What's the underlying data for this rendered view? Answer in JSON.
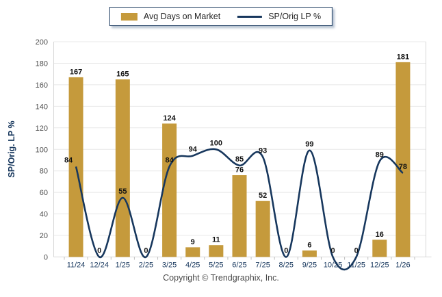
{
  "legend": {
    "items": [
      {
        "label": "Avg Days on Market",
        "swatch": "bar-swatch",
        "color": "#C59A3C"
      },
      {
        "label": "SP/Orig LP %",
        "swatch": "line-swatch",
        "color": "#17375D"
      }
    ]
  },
  "y_axis": {
    "title": "SP/Orig. LP %",
    "min": 0,
    "max": 200,
    "step": 20
  },
  "footer": {
    "copyright": "Copyright © Trendgraphix, Inc."
  },
  "colors": {
    "bar_fill": "#C59A3C",
    "line_stroke": "#17375D",
    "gridline": "#E8E8E8",
    "axis_line": "#D6D6D6",
    "tick_mark": "#BDBDBD",
    "y_tick_label": "#4D4D4D",
    "x_tick_label": "#17375D",
    "data_label": "#111111"
  },
  "chart_data": {
    "type": "bar+line",
    "categories": [
      "11/24",
      "12/24",
      "1/25",
      "2/25",
      "3/25",
      "4/25",
      "5/25",
      "6/25",
      "7/25",
      "8/25",
      "9/25",
      "10/25",
      "11/25",
      "12/25",
      "1/26"
    ],
    "series": [
      {
        "name": "Avg Days on Market",
        "type": "bar",
        "color": "#C59A3C",
        "values": [
          167,
          0,
          165,
          0,
          124,
          9,
          11,
          76,
          52,
          0,
          6,
          0,
          0,
          16,
          181
        ]
      },
      {
        "name": "SP/Orig LP %",
        "type": "line",
        "color": "#17375D",
        "values": [
          84,
          0,
          55,
          0,
          84,
          94,
          100,
          85,
          93,
          0,
          99,
          0,
          0,
          89,
          78
        ]
      }
    ],
    "title": "",
    "xlabel": "",
    "ylabel": "SP/Orig. LP %",
    "ylim": [
      0,
      200
    ],
    "y_tick_step": 20,
    "grid": "horizontal",
    "legend_position": "top-center",
    "data_labels": true
  }
}
